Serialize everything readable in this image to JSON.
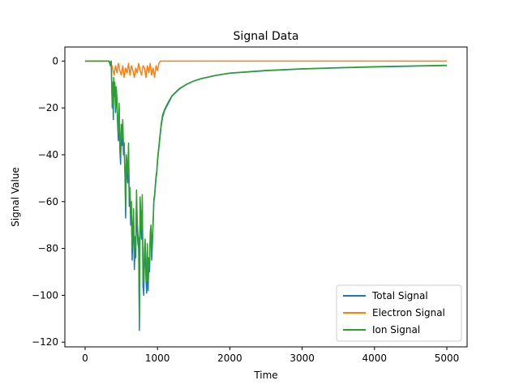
{
  "chart_data": {
    "type": "line",
    "title": "Signal Data",
    "xlabel": "Time",
    "ylabel": "Signal Value",
    "xlim": [
      -280,
      5280
    ],
    "ylim": [
      -122,
      6
    ],
    "xticks": [
      0,
      1000,
      2000,
      3000,
      4000,
      5000
    ],
    "yticks": [
      0,
      -20,
      -40,
      -60,
      -80,
      -100,
      -120
    ],
    "grid": false,
    "legend_position": "lower right",
    "series": [
      {
        "name": "Total Signal",
        "color": "#1f77b4",
        "x": [
          0,
          330,
          350,
          360,
          375,
          380,
          390,
          395,
          400,
          410,
          420,
          430,
          440,
          450,
          460,
          470,
          480,
          490,
          500,
          510,
          520,
          530,
          540,
          550,
          560,
          570,
          580,
          590,
          600,
          610,
          620,
          630,
          640,
          650,
          660,
          670,
          680,
          690,
          700,
          710,
          720,
          730,
          740,
          750,
          760,
          770,
          780,
          790,
          800,
          810,
          820,
          830,
          840,
          850,
          860,
          870,
          880,
          890,
          900,
          910,
          920,
          930,
          940,
          950,
          960,
          970,
          980,
          990,
          1000,
          1010,
          1020,
          1030,
          1040,
          1050,
          1070,
          1100,
          1150,
          1200,
          1300,
          1400,
          1500,
          1600,
          1800,
          2000,
          2500,
          3000,
          3500,
          4000,
          4500,
          5000
        ],
        "y": [
          0,
          0,
          -2,
          0,
          -20,
          -10,
          -25,
          -8,
          -15,
          -10,
          -22,
          -12,
          -18,
          -28,
          -34,
          -20,
          -38,
          -44,
          -30,
          -36,
          -28,
          -40,
          -38,
          -48,
          -67,
          -44,
          -48,
          -52,
          -38,
          -62,
          -58,
          -70,
          -64,
          -85,
          -75,
          -68,
          -89,
          -80,
          -84,
          -58,
          -72,
          -78,
          -80,
          -115,
          -62,
          -70,
          -76,
          -60,
          -96,
          -100,
          -85,
          -80,
          -92,
          -99,
          -82,
          -98,
          -88,
          -90,
          -76,
          -72,
          -85,
          -78,
          -70,
          -60,
          -58,
          -54,
          -50,
          -48,
          -43,
          -40,
          -37,
          -34,
          -31,
          -28,
          -24,
          -21,
          -18,
          -15,
          -12,
          -10,
          -8.6,
          -7.6,
          -6.2,
          -5.2,
          -4.1,
          -3.4,
          -2.9,
          -2.5,
          -2.2,
          -1.9
        ]
      },
      {
        "name": "Electron Signal",
        "color": "#ff7f0e",
        "x": [
          0,
          330,
          360,
          380,
          400,
          420,
          440,
          460,
          480,
          500,
          520,
          540,
          560,
          580,
          600,
          620,
          640,
          660,
          680,
          700,
          720,
          740,
          760,
          780,
          800,
          820,
          840,
          860,
          880,
          900,
          920,
          940,
          960,
          980,
          1000,
          1020,
          1040,
          1060,
          2000,
          3000,
          4000,
          5000
        ],
        "y": [
          0,
          0,
          -1,
          -3,
          -6,
          -2,
          -5,
          -1,
          -4,
          -6,
          -2,
          -7,
          -3,
          -5,
          -1,
          -6,
          -2,
          -4,
          -7,
          -3,
          -5,
          -1,
          -4,
          -6,
          -2,
          -3,
          -7,
          -2,
          -5,
          -1,
          -6,
          -3,
          -7,
          -2,
          -4,
          -1,
          0,
          0,
          0,
          0,
          0,
          0
        ]
      },
      {
        "name": "Ion Signal",
        "color": "#2ca02c",
        "x": [
          0,
          330,
          350,
          360,
          375,
          380,
          390,
          395,
          400,
          410,
          420,
          430,
          440,
          450,
          460,
          470,
          480,
          490,
          500,
          510,
          520,
          530,
          540,
          550,
          560,
          570,
          580,
          590,
          600,
          610,
          620,
          630,
          640,
          650,
          660,
          670,
          680,
          690,
          700,
          710,
          720,
          730,
          740,
          750,
          760,
          770,
          780,
          790,
          800,
          810,
          820,
          830,
          840,
          850,
          860,
          870,
          880,
          890,
          900,
          910,
          920,
          930,
          940,
          950,
          960,
          970,
          980,
          990,
          1000,
          1010,
          1020,
          1030,
          1040,
          1050,
          1070,
          1100,
          1150,
          1200,
          1300,
          1400,
          1500,
          1600,
          1800,
          2000,
          2500,
          3000,
          3500,
          4000,
          4500,
          5000
        ],
        "y": [
          0,
          0,
          -1,
          0,
          -18,
          -9,
          -22,
          -7,
          -12,
          -9,
          -20,
          -11,
          -16,
          -26,
          -31,
          -18,
          -35,
          -40,
          -27,
          -33,
          -25,
          -36,
          -35,
          -45,
          -62,
          -40,
          -44,
          -48,
          -35,
          -58,
          -54,
          -66,
          -60,
          -80,
          -70,
          -63,
          -84,
          -75,
          -79,
          -55,
          -68,
          -74,
          -76,
          -110,
          -58,
          -66,
          -72,
          -57,
          -91,
          -95,
          -80,
          -76,
          -88,
          -94,
          -78,
          -94,
          -84,
          -86,
          -73,
          -70,
          -82,
          -75,
          -68,
          -59,
          -57,
          -53,
          -49,
          -47,
          -42,
          -39,
          -36,
          -33,
          -30,
          -27,
          -23,
          -20.5,
          -17.5,
          -14.8,
          -11.8,
          -9.9,
          -8.5,
          -7.5,
          -6.1,
          -5.1,
          -4.0,
          -3.3,
          -2.8,
          -2.4,
          -2.1,
          -1.8
        ]
      }
    ]
  }
}
